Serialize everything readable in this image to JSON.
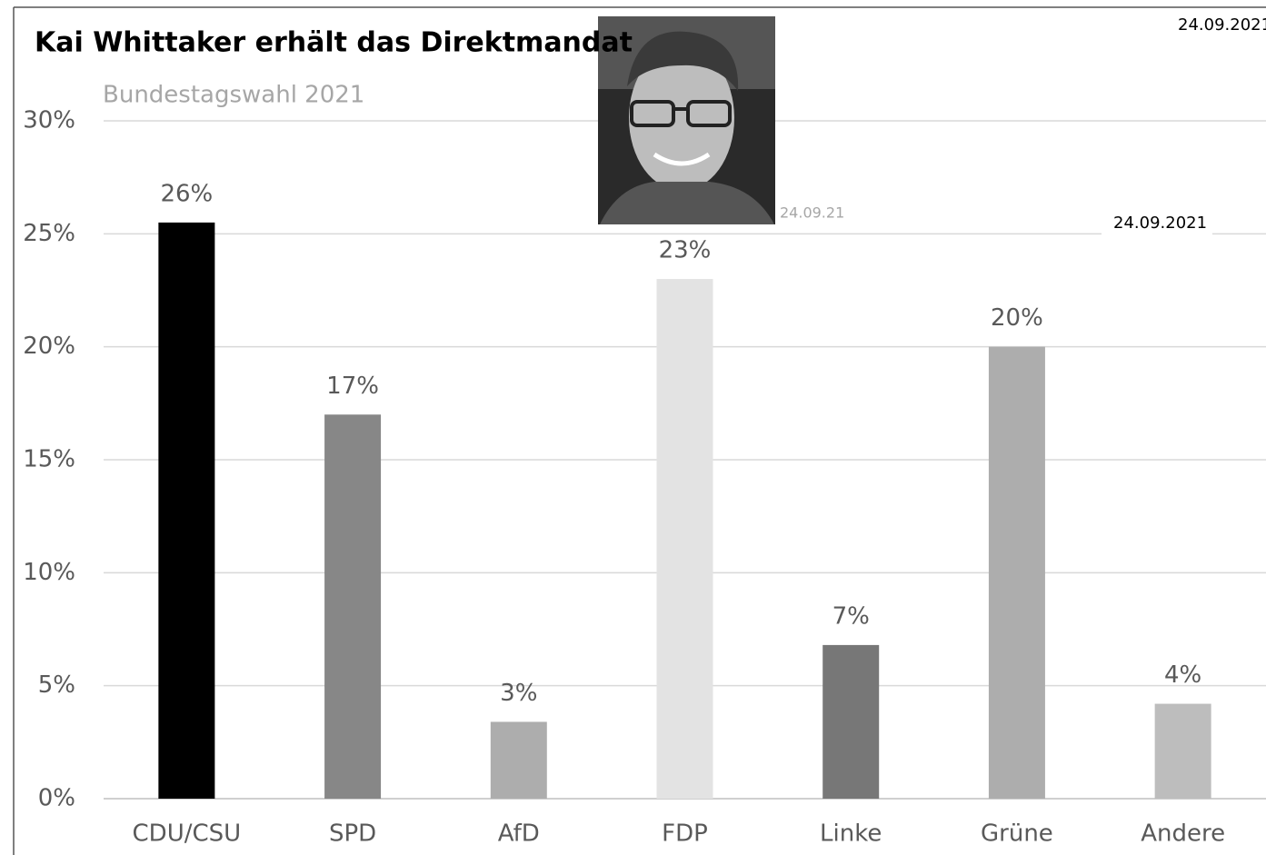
{
  "chart_data": {
    "type": "bar",
    "title": "Kai Whittaker erhält das Direktmandat",
    "subtitle": "Bundestagswahl 2021",
    "annotations": [
      "24.09.21",
      "24.09.2021",
      "24.09.2021"
    ],
    "categories": [
      "CDU/CSU",
      "SPD",
      "AfD",
      "FDP",
      "Linke",
      "Grüne",
      "Andere"
    ],
    "values": [
      25.5,
      17.0,
      3.4,
      23.0,
      6.8,
      20.0,
      4.2
    ],
    "value_labels": [
      "26%",
      "17%",
      "3%",
      "23%",
      "7%",
      "20%",
      "4%"
    ],
    "colors": [
      "#000000",
      "#878787",
      "#adadad",
      "#e3e3e3",
      "#777777",
      "#adadad",
      "#bdbdbd"
    ],
    "ylim": [
      0,
      30
    ],
    "yticks": [
      {
        "value": 0,
        "label": "0%"
      },
      {
        "value": 5,
        "label": "5%"
      },
      {
        "value": 10,
        "label": "10%"
      },
      {
        "value": 15,
        "label": "15%"
      },
      {
        "value": 20,
        "label": "20%"
      },
      {
        "value": 25,
        "label": "25%"
      },
      {
        "value": 30,
        "label": "30%"
      }
    ],
    "grid": true
  }
}
